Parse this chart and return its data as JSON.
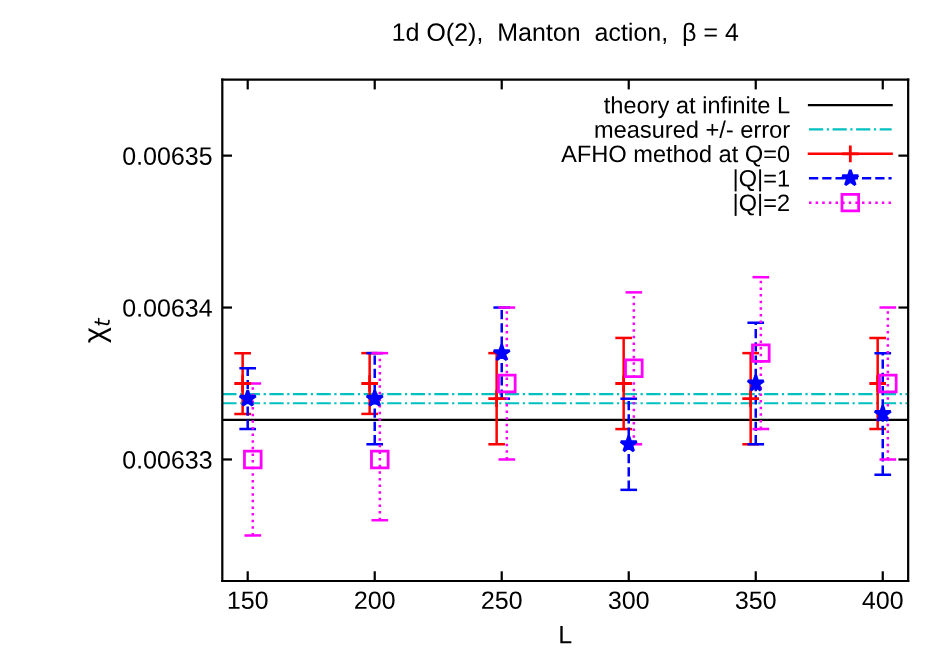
{
  "chart_data": {
    "type": "scatter",
    "title": "1d O(2),  Manton  action,  β = 4",
    "xlabel": "L",
    "ylabel": "χ$_{t}$",
    "xlim": [
      140,
      410
    ],
    "xticks": [
      150,
      200,
      250,
      300,
      350,
      400
    ],
    "ylim": [
      0.006322,
      0.006355
    ],
    "yticks": [
      0.00633,
      0.00634,
      0.00635
    ],
    "grid": false,
    "legend": "top right",
    "ref_lines": [
      {
        "axis": "y",
        "value": 0.0063326,
        "label": "theory at infinite L",
        "color": "#000000",
        "line_style": "solid"
      },
      {
        "axis": "y",
        "value": 0.0063343,
        "label": "measured +/- error",
        "color": "#00c0c0",
        "line_style": "dashdot"
      },
      {
        "axis": "y",
        "value": 0.0063337,
        "label": null,
        "color": "#00c0c0",
        "line_style": "dashdot"
      }
    ],
    "series": [
      {
        "name": "AFHO method at Q=0",
        "color": "#ff0000",
        "marker": "cross",
        "line_style": "solid",
        "x": [
          148,
          198,
          248,
          298,
          348,
          398
        ],
        "values": [
          0.006335,
          0.006335,
          0.006334,
          0.006335,
          0.006334,
          0.006335
        ],
        "errors": [
          2e-06,
          2e-06,
          3e-06,
          3e-06,
          3e-06,
          3e-06
        ]
      },
      {
        "name": "|Q|=1",
        "color": "#0000ff",
        "marker": "star",
        "line_style": "dashed",
        "x": [
          150,
          200,
          250,
          300,
          350,
          400
        ],
        "values": [
          0.006334,
          0.006334,
          0.006337,
          0.006331,
          0.006335,
          0.006333
        ],
        "errors": [
          2e-06,
          3e-06,
          3e-06,
          3e-06,
          4e-06,
          4e-06
        ]
      },
      {
        "name": "|Q|=2",
        "color": "#ff00ff",
        "marker": "square",
        "line_style": "dotted",
        "x": [
          152,
          202,
          252,
          302,
          352,
          402
        ],
        "values": [
          0.00633,
          0.00633,
          0.006335,
          0.006336,
          0.006337,
          0.006335
        ],
        "errors": [
          5e-06,
          [
            0.006326,
            0.006337
          ],
          5e-06,
          5e-06,
          5e-06,
          5e-06
        ]
      }
    ]
  }
}
